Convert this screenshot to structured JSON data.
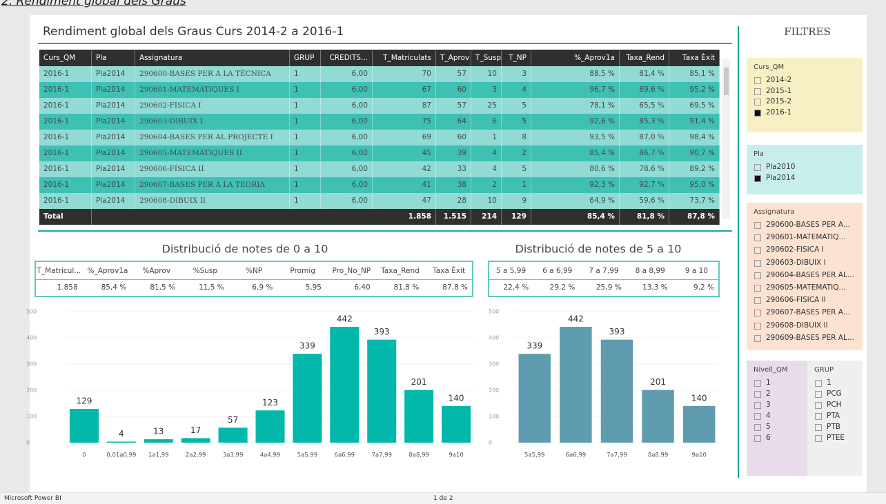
{
  "caption": "2. Rendiment global dels Graus",
  "report": {
    "title": "Rendiment global dels Graus Curs 2014-2 a 2016-1"
  },
  "table": {
    "columns": [
      "Curs_QM",
      "Pla",
      "Assignatura",
      "GRUP",
      "CREDITS...",
      "T_Matriculats",
      "T_Aprov",
      "T_Susp",
      "T_NP",
      "%_Aprov1a",
      "Taxa_Rend",
      "Taxa Èxit"
    ],
    "rows": [
      [
        "2016-1",
        "Pla2014",
        "290600-BASES PER A LA TÈCNICA",
        "1",
        "6,00",
        "70",
        "57",
        "10",
        "3",
        "88,5 %",
        "81,4 %",
        "85,1 %"
      ],
      [
        "2016-1",
        "Pla2014",
        "290601-MATEMÀTIQUES I",
        "1",
        "6,00",
        "67",
        "60",
        "3",
        "4",
        "96,7 %",
        "89,6 %",
        "95,2 %"
      ],
      [
        "2016-1",
        "Pla2014",
        "290602-FÍSICA I",
        "1",
        "6,00",
        "87",
        "57",
        "25",
        "5",
        "78,1 %",
        "65,5 %",
        "69,5 %"
      ],
      [
        "2016-1",
        "Pla2014",
        "290603-DIBUIX I",
        "1",
        "6,00",
        "75",
        "64",
        "6",
        "5",
        "92,6 %",
        "85,3 %",
        "91,4 %"
      ],
      [
        "2016-1",
        "Pla2014",
        "290604-BASES PER AL PROJECTE I",
        "1",
        "6,00",
        "69",
        "60",
        "1",
        "8",
        "93,5 %",
        "87,0 %",
        "98,4 %"
      ],
      [
        "2016-1",
        "Pla2014",
        "290605-MATEMÀTIQUES II",
        "1",
        "6,00",
        "45",
        "39",
        "4",
        "2",
        "85,4 %",
        "86,7 %",
        "90,7 %"
      ],
      [
        "2016-1",
        "Pla2014",
        "290606-FÍSICA II",
        "1",
        "6,00",
        "42",
        "33",
        "4",
        "5",
        "80,6 %",
        "78,6 %",
        "89,2 %"
      ],
      [
        "2016-1",
        "Pla2014",
        "290607-BASES PER A LA TEORIA",
        "1",
        "6,00",
        "41",
        "38",
        "2",
        "1",
        "92,3 %",
        "92,7 %",
        "95,0 %"
      ],
      [
        "2016-1",
        "Pla2014",
        "290608-DIBUIX II",
        "1",
        "6,00",
        "47",
        "28",
        "10",
        "9",
        "64,9 %",
        "59,6 %",
        "73,7 %"
      ]
    ],
    "total": {
      "label": "Total",
      "values": [
        "1.858",
        "1.515",
        "214",
        "129",
        "85,4 %",
        "81,8 %",
        "87,8 %"
      ]
    }
  },
  "charts": [
    {
      "type": "bar",
      "title": "Distribució de notes de 0 a 10",
      "summary": {
        "columns": [
          "T_Matricul...",
          "%_Aprov1a",
          "%Aprov",
          "%Susp",
          "%NP",
          "Promig",
          "Pro_No_NP",
          "Taxa_Rend",
          "Taxa Èxit"
        ],
        "values": [
          "1.858",
          "85,4 %",
          "81,5 %",
          "11,5 %",
          "6,9 %",
          "5,95",
          "6,40",
          "81,8 %",
          "87,8 %"
        ]
      },
      "categories": [
        "0",
        "0,01a0,99",
        "1a1,99",
        "2a2,99",
        "3a3,99",
        "4a4,99",
        "5a5,99",
        "6a6,99",
        "7a7,99",
        "8a8,99",
        "9a10"
      ],
      "values": [
        129,
        4,
        13,
        17,
        57,
        123,
        339,
        442,
        393,
        201,
        140
      ],
      "color": "#01b8aa",
      "ylim": [
        0,
        500
      ],
      "yticks": [
        0,
        100,
        200,
        300,
        400,
        500
      ]
    },
    {
      "type": "bar",
      "title": "Distribució de notes de 5 a 10",
      "summary": {
        "columns": [
          "5 a 5,99",
          "6 a 6,99",
          "7 a 7,99",
          "8 a 8,99",
          "9 a 10"
        ],
        "values": [
          "22,4 %",
          "29,2 %",
          "25,9 %",
          "13,3 %",
          "9,2 %"
        ]
      },
      "categories": [
        "5a5,99",
        "6a6,99",
        "7a7,99",
        "8a8,99",
        "9a10"
      ],
      "values": [
        339,
        442,
        393,
        201,
        140
      ],
      "color": "#5f9caf",
      "ylim": [
        0,
        500
      ],
      "yticks": [
        0,
        100,
        200,
        300,
        400,
        500
      ]
    }
  ],
  "filters": {
    "title": "FILTRES",
    "slicers": [
      {
        "title": "Curs_QM",
        "items": [
          "2014-2",
          "2015-1",
          "2015-2",
          "2016-1"
        ],
        "selected_index": 3,
        "color": "#f8efc4"
      },
      {
        "title": "Pla",
        "items": [
          "Pla2010",
          "Pla2014"
        ],
        "selected_index": 1,
        "color": "#c8eeec"
      },
      {
        "title": "Assignatura",
        "items": [
          "290600-BASES PER A...",
          "290601-MATEMÀTIQ...",
          "290602-FÍSICA I",
          "290603-DIBUIX I",
          "290604-BASES PER AL...",
          "290605-MATEMÀTIQ...",
          "290606-FÍSICA II",
          "290607-BASES PER A...",
          "290608-DIBUIX II",
          "290609-BASES PER AL..."
        ],
        "color": "#fde2d2"
      },
      {
        "title": "Nivell_QM",
        "items": [
          "1",
          "2",
          "3",
          "4",
          "5",
          "6"
        ],
        "color": "#e8dceb"
      },
      {
        "title": "GRUP",
        "items": [
          "1",
          "PCG",
          "PCH",
          "PTA",
          "PTB",
          "PTEE"
        ],
        "color": "#efefef"
      }
    ]
  },
  "footer": {
    "app": "Microsoft Power BI",
    "page": "1 de 2"
  }
}
